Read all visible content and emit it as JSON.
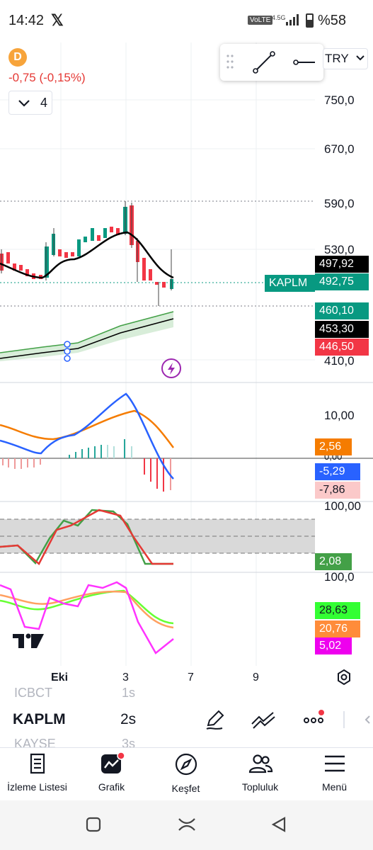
{
  "status_bar": {
    "time": "14:42",
    "x_logo": "𝕏",
    "volte": "VoLTE",
    "network": "4.5G",
    "battery": "%58",
    "battery_level": 0.58
  },
  "symbol": {
    "badge": "D",
    "change": "-0,75 (-0,15%)",
    "indicators_count": "4"
  },
  "toolbar_top": {
    "currency": "TRY"
  },
  "price_axis": {
    "labels": [
      "750,0",
      "670,0",
      "590,0",
      "530,0",
      "410,0"
    ],
    "tags": {
      "high": "497,92",
      "symbol_name": "KAPLM",
      "last": "492,75",
      "upper_band": "460,10",
      "mid_band": "453,30",
      "lower_band": "446,50"
    }
  },
  "macd": {
    "axis_top": "10,00",
    "axis_zero": "0,00",
    "tags": {
      "signal": "2,56",
      "macd": "-5,29",
      "hist": "-7,86"
    }
  },
  "stoch": {
    "axis_top": "100,00",
    "tag": "2,08"
  },
  "stoch2": {
    "axis_top": "100,0",
    "tags": {
      "green": "28,63",
      "orange": "20,76",
      "magenta": "5,02"
    }
  },
  "time_axis": {
    "labels": [
      "Eki",
      "3",
      "7",
      "9"
    ]
  },
  "watchlist_strip": {
    "prev": "ICBCT",
    "prev_time": "1s",
    "current": "KAPLM",
    "current_time": "2s",
    "next": "KAYSE",
    "next_time": "3s"
  },
  "bottom_nav": {
    "items": [
      {
        "label": "İzleme Listesi"
      },
      {
        "label": "Grafik"
      },
      {
        "label": "Keşfet"
      },
      {
        "label": "Topluluk"
      },
      {
        "label": "Menü"
      }
    ]
  },
  "colors": {
    "up": "#089981",
    "down": "#f23645",
    "accent": "#2962ff",
    "orange": "#f57c00",
    "badge": "#f7a43b",
    "alert": "#9c27b0"
  }
}
